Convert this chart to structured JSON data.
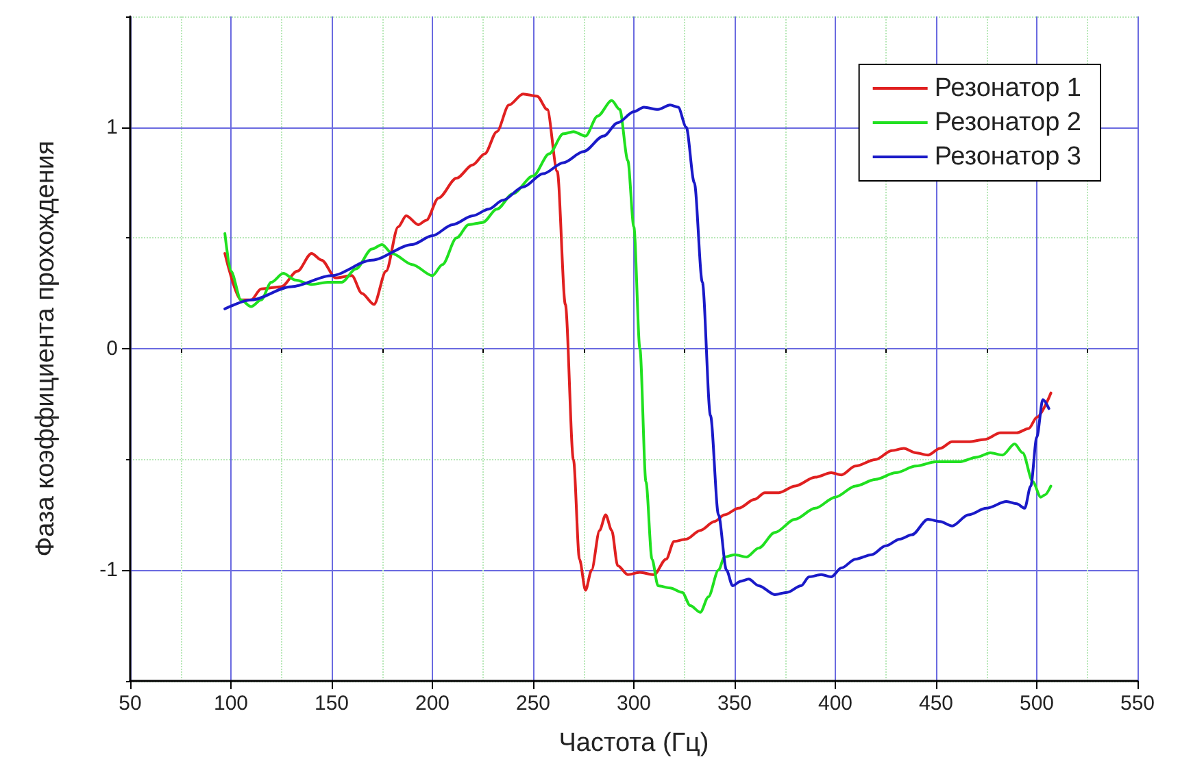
{
  "chart_data": {
    "type": "line",
    "xlabel": "Частота (Гц)",
    "ylabel": "Фаза коэффициента прохождения",
    "xlim": [
      50,
      550
    ],
    "ylim": [
      -1.5,
      1.5
    ],
    "xticks": [
      50,
      {
        "value": 75,
        "label": null
      },
      100,
      {
        "value": 125,
        "label": null
      },
      150,
      {
        "value": 175,
        "label": null
      },
      200,
      {
        "value": 225,
        "label": null
      },
      250,
      {
        "value": 275,
        "label": null
      },
      300,
      {
        "value": 325,
        "label": null
      },
      350,
      {
        "value": 375,
        "label": null
      },
      400,
      {
        "value": 425,
        "label": null
      },
      450,
      {
        "value": 475,
        "label": null
      },
      500,
      {
        "value": 525,
        "label": null
      },
      550
    ],
    "yticks": [
      {
        "value": -1.5,
        "label": null
      },
      -1,
      {
        "value": -0.5,
        "label": null
      },
      0,
      {
        "value": 0.5,
        "label": null
      },
      1,
      {
        "value": 1.5,
        "label": null
      }
    ],
    "grid": true,
    "legend": "top right",
    "marker": "none",
    "line_style": "solid",
    "series": [
      {
        "name": "Резонатор 1",
        "color": "#e02020",
        "x": [
          97,
          105,
          110,
          115,
          125,
          133,
          140,
          145,
          152,
          160,
          165,
          171,
          177,
          183,
          187,
          193,
          197,
          203,
          212,
          220,
          226,
          232,
          238,
          245,
          252,
          257,
          262,
          266,
          270,
          273,
          276,
          279,
          283,
          286,
          289,
          292,
          297,
          303,
          310,
          316,
          320,
          326,
          333,
          340,
          345,
          352,
          360,
          365,
          372,
          380,
          390,
          398,
          403,
          410,
          420,
          428,
          434,
          440,
          446,
          452,
          458,
          466,
          474,
          482,
          490,
          496,
          500,
          507
        ],
        "values": [
          0.43,
          0.22,
          0.22,
          0.27,
          0.28,
          0.35,
          0.43,
          0.4,
          0.32,
          0.33,
          0.25,
          0.2,
          0.35,
          0.55,
          0.6,
          0.56,
          0.58,
          0.68,
          0.77,
          0.83,
          0.88,
          0.98,
          1.1,
          1.15,
          1.14,
          1.08,
          0.8,
          0.2,
          -0.5,
          -0.95,
          -1.09,
          -1.0,
          -0.82,
          -0.75,
          -0.82,
          -0.98,
          -1.02,
          -1.01,
          -1.02,
          -0.95,
          -0.87,
          -0.86,
          -0.82,
          -0.78,
          -0.75,
          -0.72,
          -0.68,
          -0.65,
          -0.65,
          -0.62,
          -0.58,
          -0.56,
          -0.57,
          -0.53,
          -0.5,
          -0.46,
          -0.45,
          -0.47,
          -0.48,
          -0.45,
          -0.42,
          -0.42,
          -0.41,
          -0.38,
          -0.38,
          -0.36,
          -0.31,
          -0.2
        ]
      },
      {
        "name": "Резонатор 2",
        "color": "#20e020",
        "x": [
          97,
          100,
          105,
          110,
          115,
          120,
          126,
          132,
          140,
          148,
          155,
          162,
          170,
          175,
          180,
          190,
          200,
          205,
          212,
          218,
          225,
          232,
          240,
          250,
          258,
          265,
          270,
          276,
          282,
          289,
          293,
          297,
          300,
          303,
          306,
          309,
          312,
          318,
          324,
          328,
          333,
          337,
          342,
          345,
          350,
          356,
          362,
          370,
          380,
          390,
          400,
          410,
          420,
          430,
          440,
          450,
          462,
          470,
          477,
          483,
          489,
          493,
          498,
          502,
          504,
          507
        ],
        "values": [
          0.52,
          0.35,
          0.22,
          0.19,
          0.22,
          0.3,
          0.34,
          0.31,
          0.29,
          0.3,
          0.3,
          0.36,
          0.45,
          0.47,
          0.43,
          0.38,
          0.33,
          0.38,
          0.5,
          0.56,
          0.57,
          0.63,
          0.7,
          0.78,
          0.88,
          0.97,
          0.98,
          0.96,
          1.05,
          1.12,
          1.08,
          0.85,
          0.55,
          0.0,
          -0.6,
          -0.95,
          -1.07,
          -1.08,
          -1.1,
          -1.16,
          -1.19,
          -1.12,
          -1.0,
          -0.94,
          -0.93,
          -0.94,
          -0.9,
          -0.83,
          -0.77,
          -0.72,
          -0.67,
          -0.62,
          -0.59,
          -0.56,
          -0.53,
          -0.51,
          -0.51,
          -0.49,
          -0.47,
          -0.48,
          -0.43,
          -0.47,
          -0.6,
          -0.67,
          -0.66,
          -0.62
        ]
      },
      {
        "name": "Резонатор 3",
        "color": "#1a1ac8",
        "x": [
          97,
          110,
          130,
          150,
          170,
          190,
          200,
          210,
          220,
          228,
          235,
          245,
          255,
          265,
          275,
          285,
          292,
          300,
          305,
          312,
          318,
          322,
          326,
          330,
          334,
          338,
          342,
          346,
          349,
          353,
          357,
          362,
          370,
          376,
          383,
          387,
          393,
          398,
          403,
          410,
          418,
          425,
          432,
          438,
          446,
          452,
          458,
          466,
          475,
          485,
          490,
          494,
          497,
          500,
          503,
          506
        ],
        "values": [
          0.18,
          0.22,
          0.28,
          0.33,
          0.4,
          0.47,
          0.51,
          0.56,
          0.6,
          0.63,
          0.67,
          0.73,
          0.79,
          0.84,
          0.89,
          0.96,
          1.02,
          1.07,
          1.09,
          1.08,
          1.1,
          1.09,
          1.0,
          0.75,
          0.3,
          -0.3,
          -0.75,
          -1.0,
          -1.07,
          -1.05,
          -1.04,
          -1.07,
          -1.11,
          -1.1,
          -1.07,
          -1.03,
          -1.02,
          -1.03,
          -0.99,
          -0.95,
          -0.93,
          -0.89,
          -0.86,
          -0.84,
          -0.77,
          -0.78,
          -0.8,
          -0.75,
          -0.72,
          -0.69,
          -0.7,
          -0.72,
          -0.62,
          -0.4,
          -0.23,
          -0.27
        ]
      }
    ]
  }
}
